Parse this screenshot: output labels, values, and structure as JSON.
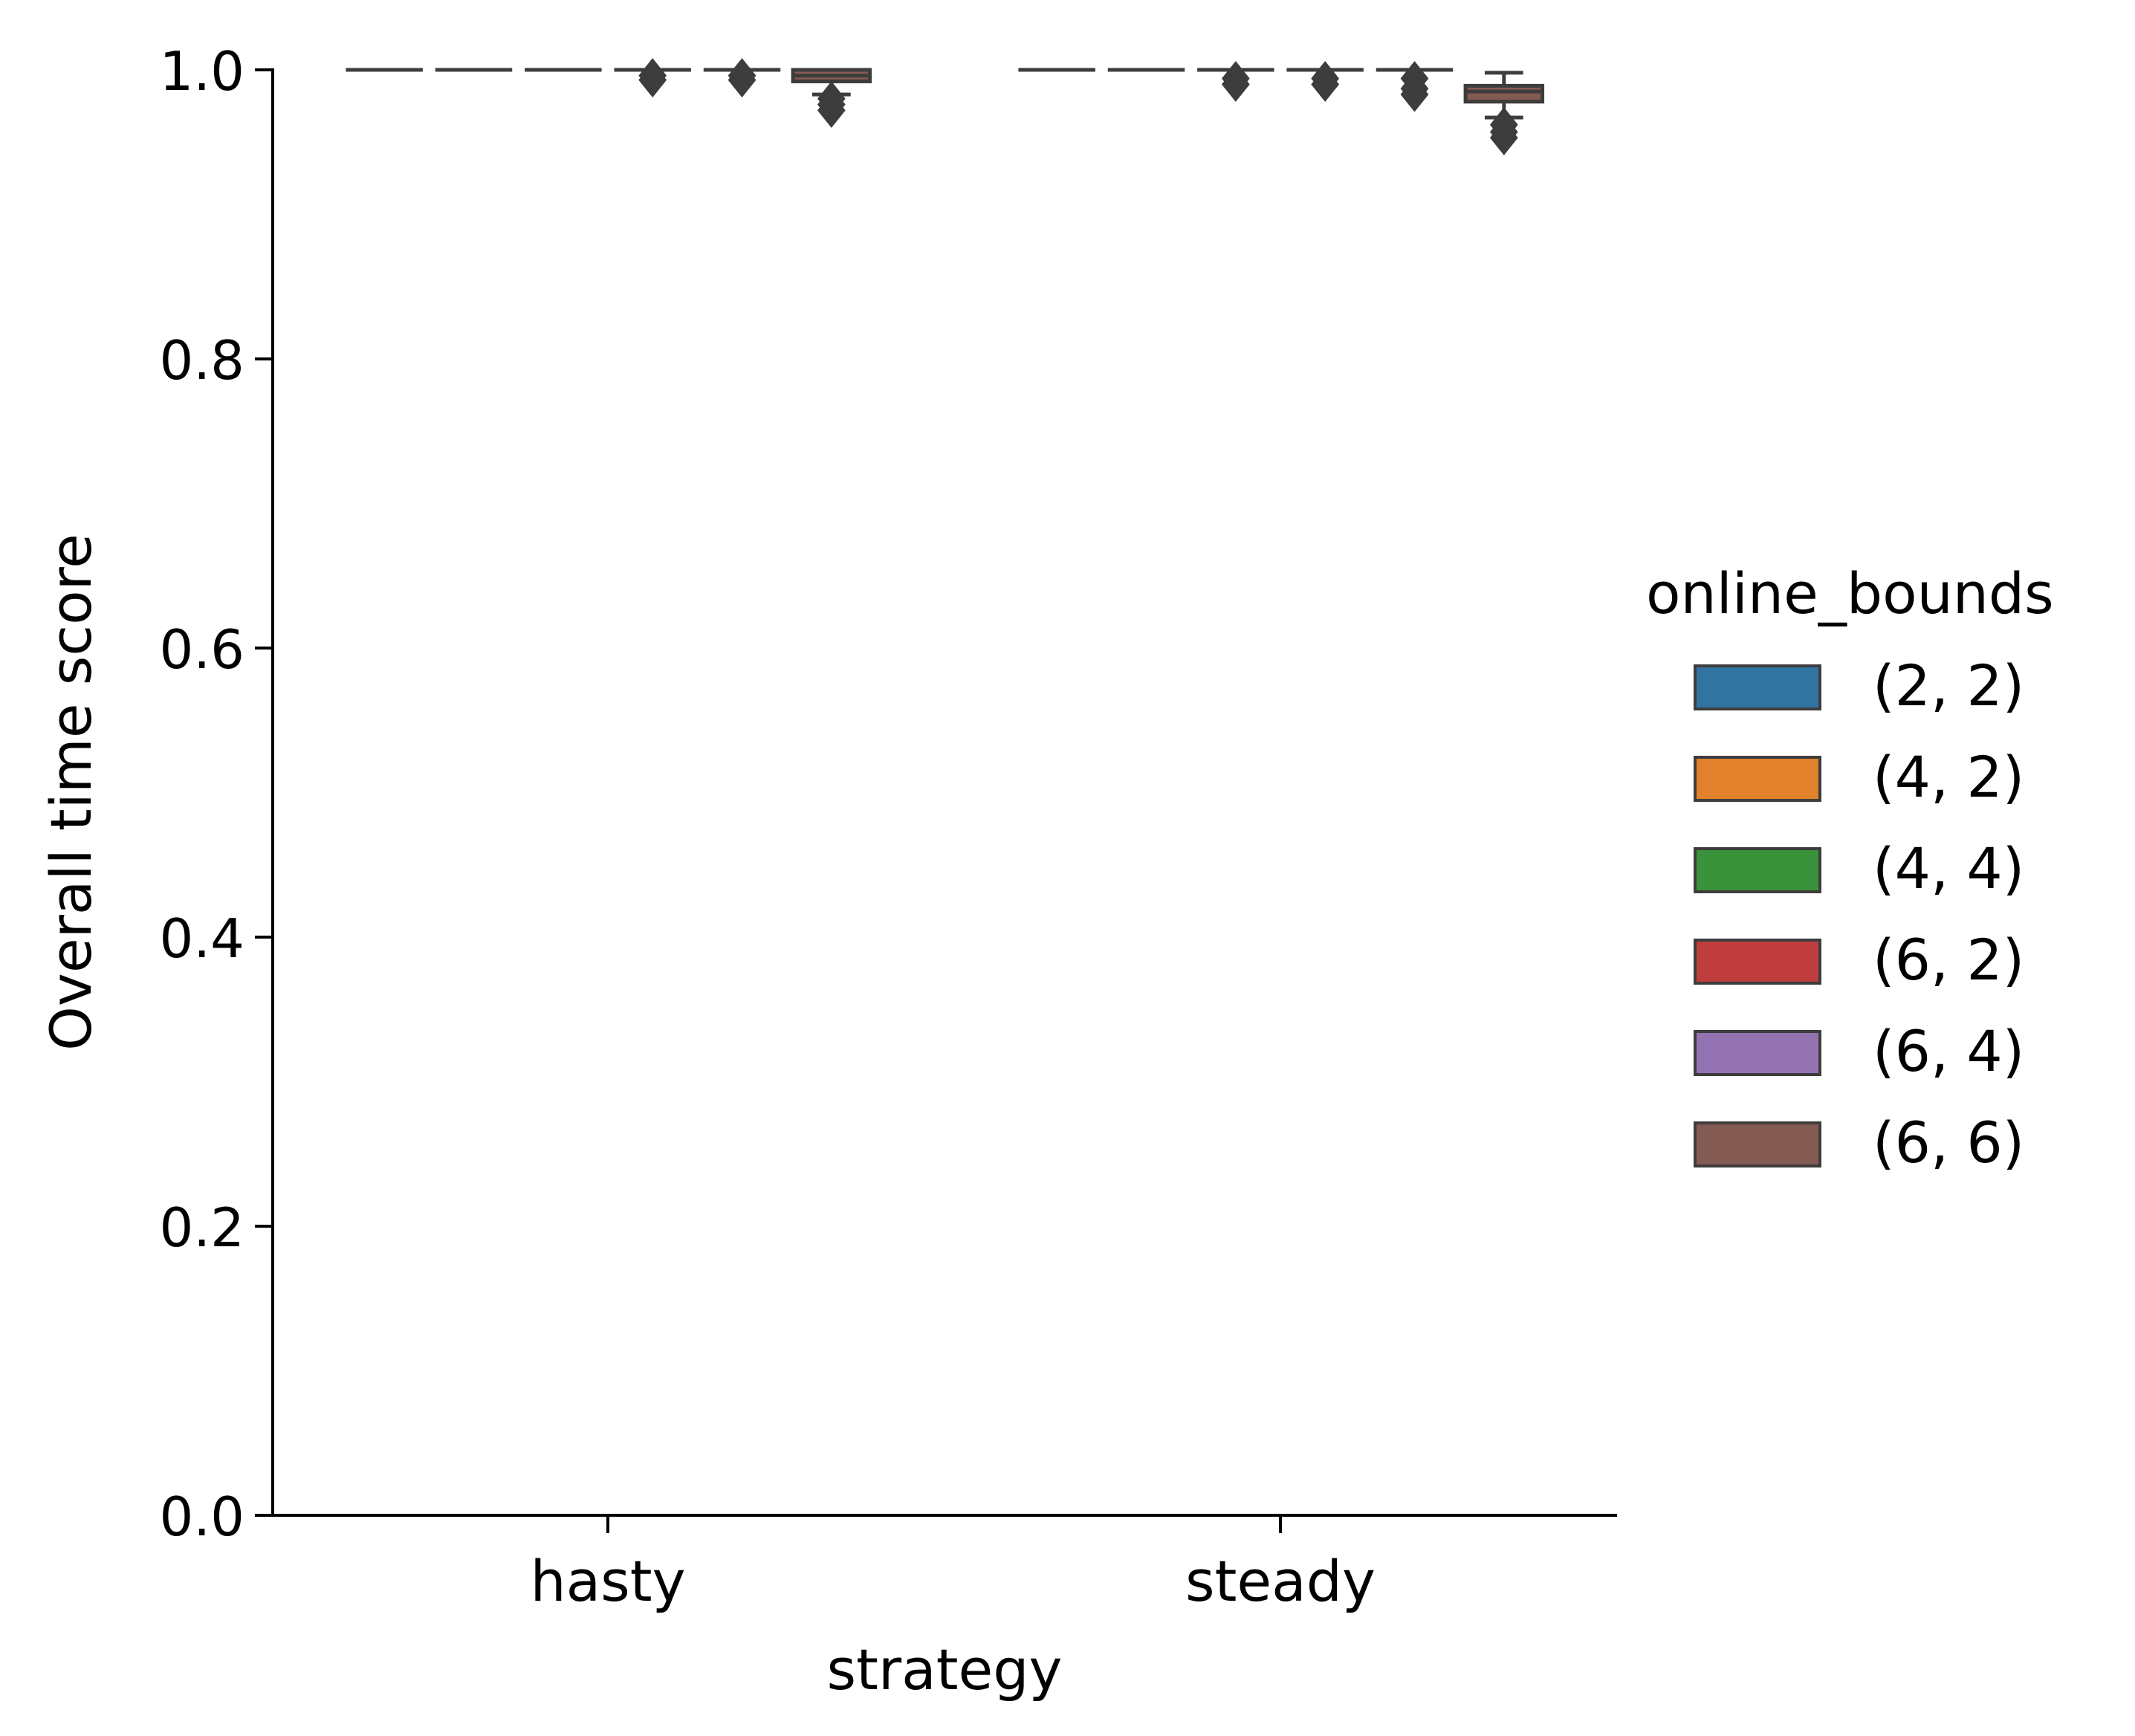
{
  "chart_data": {
    "type": "box",
    "xlabel": "strategy",
    "ylabel": "Overall time score",
    "categories": [
      "hasty",
      "steady"
    ],
    "yticks": [
      "0.0",
      "0.2",
      "0.4",
      "0.6",
      "0.8",
      "1.0"
    ],
    "ylim": [
      0.0,
      1.0
    ],
    "legend": {
      "title": "online_bounds",
      "position": "right",
      "entries": [
        "(2, 2)",
        "(4, 2)",
        "(4, 4)",
        "(6, 2)",
        "(6, 4)",
        "(6, 6)"
      ]
    },
    "colors": [
      "#3274a1",
      "#e1812c",
      "#3a923a",
      "#c03d3e",
      "#9372b2",
      "#845b53"
    ],
    "edge_color": "#3d3d3d",
    "series": [
      {
        "name": "(2, 2)",
        "boxes": [
          {
            "category": "hasty",
            "whisker_low": 1.0,
            "q1": 1.0,
            "median": 1.0,
            "q3": 1.0,
            "whisker_high": 1.0,
            "outliers": []
          },
          {
            "category": "steady",
            "whisker_low": 1.0,
            "q1": 1.0,
            "median": 1.0,
            "q3": 1.0,
            "whisker_high": 1.0,
            "outliers": []
          }
        ]
      },
      {
        "name": "(4, 2)",
        "boxes": [
          {
            "category": "hasty",
            "whisker_low": 1.0,
            "q1": 1.0,
            "median": 1.0,
            "q3": 1.0,
            "whisker_high": 1.0,
            "outliers": []
          },
          {
            "category": "steady",
            "whisker_low": 1.0,
            "q1": 1.0,
            "median": 1.0,
            "q3": 1.0,
            "whisker_high": 1.0,
            "outliers": []
          }
        ]
      },
      {
        "name": "(4, 4)",
        "boxes": [
          {
            "category": "hasty",
            "whisker_low": 1.0,
            "q1": 1.0,
            "median": 1.0,
            "q3": 1.0,
            "whisker_high": 1.0,
            "outliers": []
          },
          {
            "category": "steady",
            "whisker_low": 1.0,
            "q1": 1.0,
            "median": 1.0,
            "q3": 1.0,
            "whisker_high": 1.0,
            "outliers": [
              0.994,
              0.99
            ]
          }
        ]
      },
      {
        "name": "(6, 2)",
        "boxes": [
          {
            "category": "hasty",
            "whisker_low": 1.0,
            "q1": 1.0,
            "median": 1.0,
            "q3": 1.0,
            "whisker_high": 1.0,
            "outliers": [
              0.996,
              0.993
            ]
          },
          {
            "category": "steady",
            "whisker_low": 1.0,
            "q1": 1.0,
            "median": 1.0,
            "q3": 1.0,
            "whisker_high": 1.0,
            "outliers": [
              0.994,
              0.99
            ]
          }
        ]
      },
      {
        "name": "(6, 4)",
        "boxes": [
          {
            "category": "hasty",
            "whisker_low": 1.0,
            "q1": 1.0,
            "median": 1.0,
            "q3": 1.0,
            "whisker_high": 1.0,
            "outliers": [
              0.996,
              0.993
            ]
          },
          {
            "category": "steady",
            "whisker_low": 1.0,
            "q1": 1.0,
            "median": 1.0,
            "q3": 1.0,
            "whisker_high": 1.0,
            "outliers": [
              0.994,
              0.987,
              0.983
            ]
          }
        ]
      },
      {
        "name": "(6, 6)",
        "boxes": [
          {
            "category": "hasty",
            "whisker_low": 0.983,
            "q1": 0.992,
            "median": 0.996,
            "q3": 1.0,
            "whisker_high": 1.0,
            "outliers": [
              0.98,
              0.976,
              0.972
            ]
          },
          {
            "category": "steady",
            "whisker_low": 0.967,
            "q1": 0.978,
            "median": 0.985,
            "q3": 0.989,
            "whisker_high": 0.998,
            "outliers": [
              0.962,
              0.957,
              0.953
            ]
          }
        ]
      }
    ]
  }
}
